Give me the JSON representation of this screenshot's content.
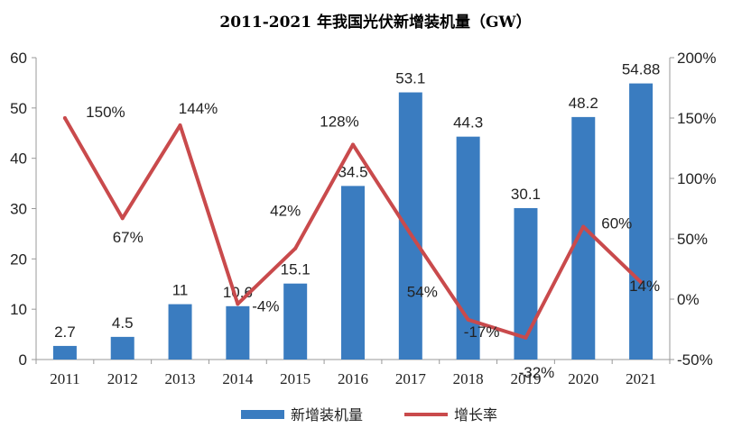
{
  "chart_data": {
    "type": "bar",
    "title": "2011-2021 年我国光伏新增装机量（GW）",
    "categories": [
      "2011",
      "2012",
      "2013",
      "2014",
      "2015",
      "2016",
      "2017",
      "2018",
      "2019",
      "2020",
      "2021"
    ],
    "series": [
      {
        "name": "新增装机量",
        "kind": "bar",
        "axis": "left",
        "color": "#3a7cc0",
        "values": [
          2.7,
          4.5,
          11,
          10.6,
          15.1,
          34.5,
          53.1,
          44.3,
          30.1,
          48.2,
          54.88
        ],
        "labels": [
          "2.7",
          "4.5",
          "11",
          "10.6",
          "15.1",
          "34.5",
          "53.1",
          "44.3",
          "30.1",
          "48.2",
          "54.88"
        ]
      },
      {
        "name": "增长率",
        "kind": "line",
        "axis": "right",
        "color": "#c94a4c",
        "values": [
          150,
          67,
          144,
          -4,
          42,
          128,
          54,
          -17,
          -32,
          60,
          14
        ],
        "labels": [
          "150%",
          "67%",
          "144%",
          "-4%",
          "42%",
          "128%",
          "54%",
          "-17%",
          "-32%",
          "60%",
          "14%"
        ]
      }
    ],
    "y_left": {
      "min": 0,
      "max": 60,
      "ticks": [
        0,
        10,
        20,
        30,
        40,
        50,
        60
      ]
    },
    "y_right": {
      "min": -50,
      "max": 200,
      "ticks": [
        "-50%",
        "0%",
        "50%",
        "100%",
        "150%",
        "200%"
      ],
      "tick_values": [
        -50,
        0,
        50,
        100,
        150,
        200
      ]
    },
    "legend": {
      "position": "bottom",
      "items": [
        "新增装机量",
        "增长率"
      ]
    },
    "grid": false
  }
}
